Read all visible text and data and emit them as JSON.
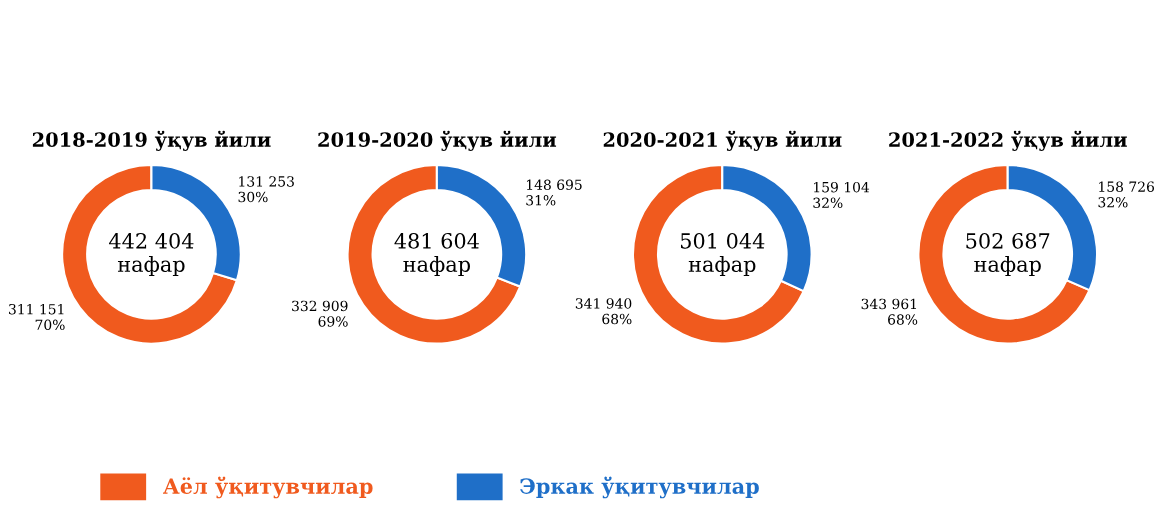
{
  "chart_data": [
    {
      "type": "donut",
      "title": "2018-2019 ўқув йили",
      "categories": [
        "Аёл ўқитувчилар",
        "Эркак ўқитувчилар"
      ],
      "values": [
        311151,
        131253
      ],
      "colors": [
        "#f05a1e",
        "#1f6fc8"
      ],
      "value_labels": [
        "311 151\n70%",
        "131 253\n30%"
      ],
      "annotations": [
        "442 404\nнафар"
      ],
      "legend": "bottom"
    },
    {
      "type": "donut",
      "title": "2019-2020 ўқув йили",
      "categories": [
        null,
        null
      ],
      "values": [
        332909,
        148695
      ],
      "colors": [
        "#f05a1e",
        "#1f6fc8"
      ],
      "value_labels": [
        "332 909\n69%",
        "148 695\n31%"
      ],
      "annotations": [
        "481 604\nнафар"
      ]
    },
    {
      "type": "donut",
      "title": "2020-2021 ўқув йили",
      "categories": [
        null,
        null
      ],
      "values": [
        341940,
        159104
      ],
      "colors": [
        "#f05a1e",
        "#1f6fc8"
      ],
      "value_labels": [
        "341 940\n68%",
        "159 104\n32%"
      ],
      "annotations": [
        "501 044\nнафар"
      ]
    },
    {
      "type": "donut",
      "title": "2021-2022 ўқув йили",
      "categories": [
        null,
        null
      ],
      "values": [
        343961,
        158726
      ],
      "colors": [
        "#f05a1e",
        "#1f6fc8"
      ],
      "value_labels": [
        "343 961\n68%",
        "158 726\n32%"
      ],
      "annotations": [
        "502 687\nнафар"
      ]
    }
  ]
}
